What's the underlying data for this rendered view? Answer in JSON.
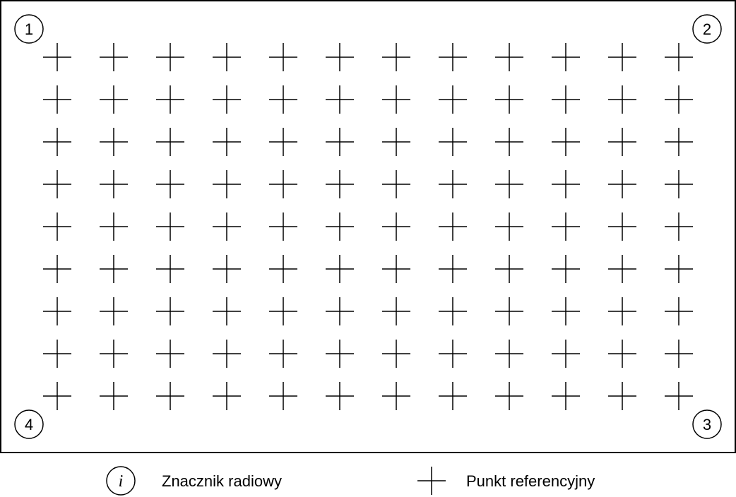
{
  "colors": {
    "stroke": "#000000",
    "background": "#ffffff"
  },
  "grid": {
    "columns": 12,
    "rows": 9,
    "marker": "cross-icon"
  },
  "radio_tags": [
    {
      "label": "1",
      "corner": "top-left"
    },
    {
      "label": "2",
      "corner": "top-right"
    },
    {
      "label": "3",
      "corner": "bottom-right"
    },
    {
      "label": "4",
      "corner": "bottom-left"
    }
  ],
  "legend": {
    "radio_tag": {
      "symbol": "i",
      "label": "Znacznik radiowy"
    },
    "reference_point": {
      "label": "Punkt referencyjny"
    }
  }
}
